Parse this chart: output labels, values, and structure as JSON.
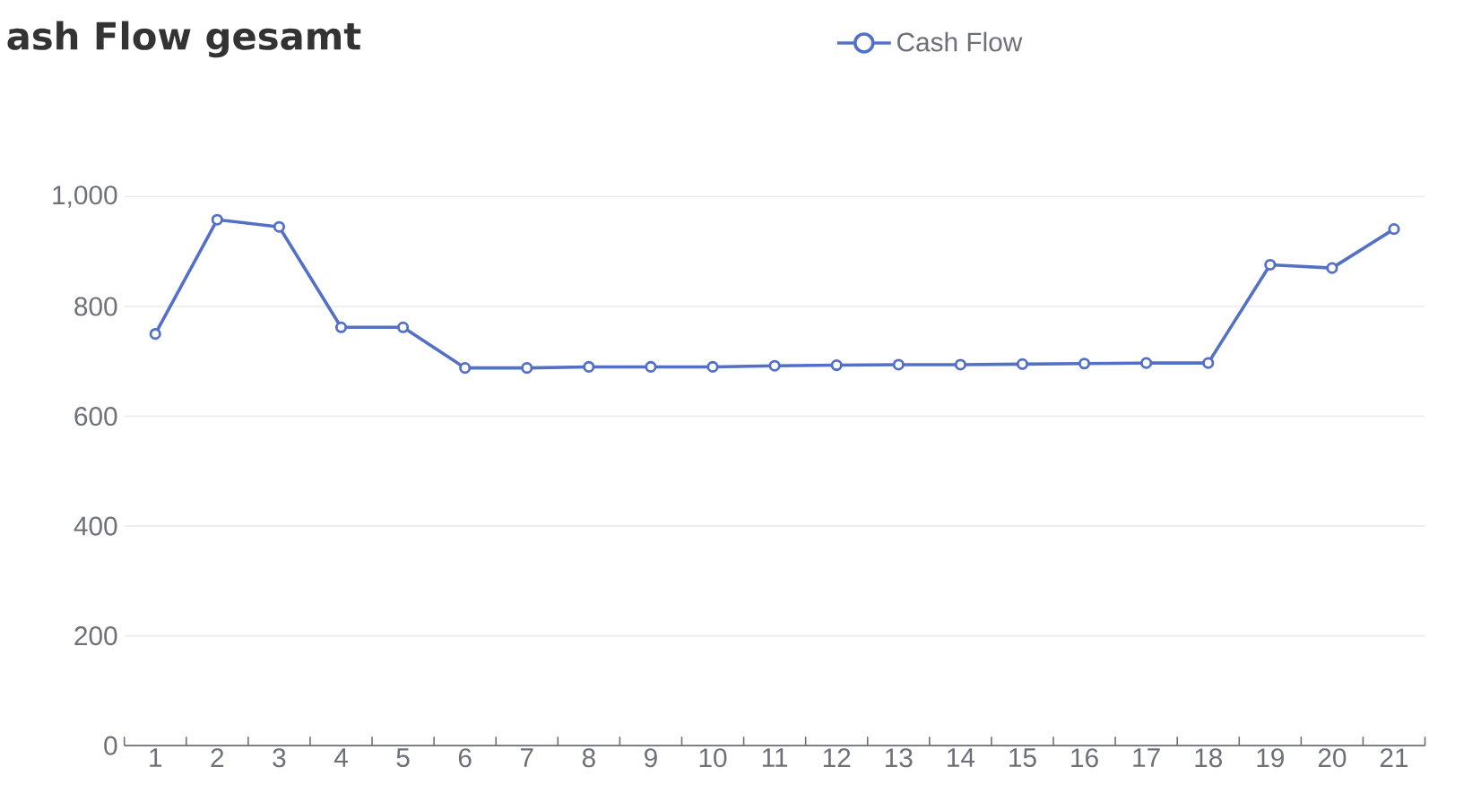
{
  "chart_data": {
    "type": "line",
    "title": "ash Flow gesamt",
    "categories": [
      "1",
      "2",
      "3",
      "4",
      "5",
      "6",
      "7",
      "8",
      "9",
      "10",
      "11",
      "12",
      "13",
      "14",
      "15",
      "16",
      "17",
      "18",
      "19",
      "20",
      "21"
    ],
    "series": [
      {
        "name": "Cash Flow",
        "color": "#5470c6",
        "values": [
          750,
          958,
          945,
          762,
          762,
          688,
          688,
          690,
          690,
          690,
          692,
          693,
          694,
          694,
          695,
          696,
          697,
          697,
          876,
          870,
          941
        ]
      }
    ],
    "ylim": [
      0,
      1000
    ],
    "yticks": [
      0,
      200,
      400,
      600,
      800,
      {
        "value": 1000,
        "label": "1,000"
      }
    ],
    "grid": "y",
    "legend": "top",
    "marker": "circle",
    "line_style": "solid"
  }
}
